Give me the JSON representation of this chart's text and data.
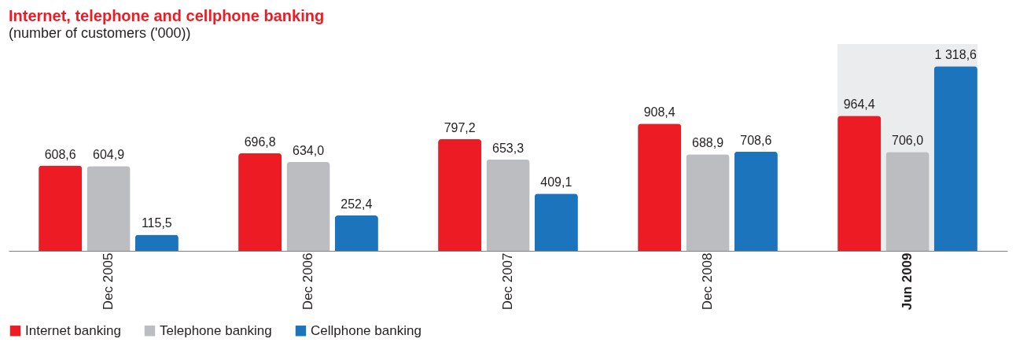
{
  "chart_data": {
    "type": "bar",
    "title": "Internet, telephone and cellphone banking",
    "subtitle": "(number of customers ('000))",
    "categories": [
      "Dec 2005",
      "Dec 2006",
      "Dec 2007",
      "Dec 2008",
      "Jun 2009"
    ],
    "series": [
      {
        "name": "Internet banking",
        "color": "#ed1c24",
        "values": [
          608.6,
          696.8,
          797.2,
          908.4,
          964.4
        ],
        "value_labels": [
          "608,6",
          "696,8",
          "797,2",
          "908,4",
          "964,4"
        ]
      },
      {
        "name": "Telephone banking",
        "color": "#bcbdc0",
        "values": [
          604.9,
          634.0,
          653.3,
          688.9,
          706.0
        ],
        "value_labels": [
          "604,9",
          "634,0",
          "653,3",
          "688,9",
          "706,0"
        ]
      },
      {
        "name": "Cellphone banking",
        "color": "#1c75bc",
        "values": [
          115.5,
          252.4,
          409.1,
          708.6,
          1318.6
        ],
        "value_labels": [
          "115,5",
          "252,4",
          "409,1",
          "708,6",
          "1 318,6"
        ]
      }
    ],
    "bands": [
      {
        "axis": "x",
        "from": "Jun 2009",
        "to": "Jun 2009",
        "color": "#ebeced"
      }
    ],
    "legend": "bottom left",
    "grid": false,
    "tick_labels": "x"
  }
}
